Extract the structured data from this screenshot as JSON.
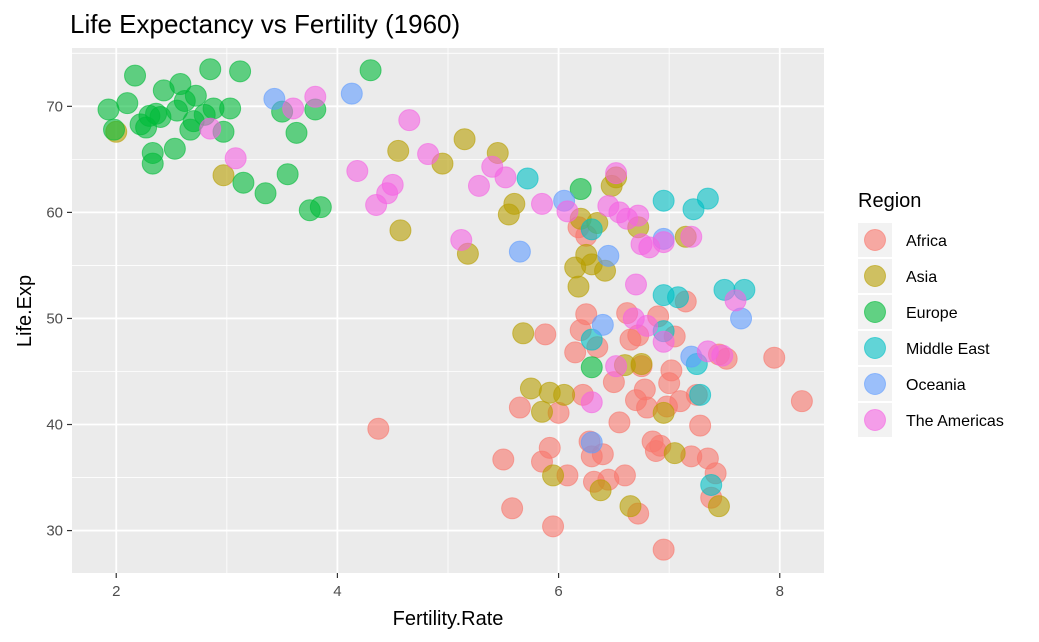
{
  "chart_data": {
    "type": "scatter",
    "title": "Life Expectancy vs Fertility (1960)",
    "xlabel": "Fertility.Rate",
    "ylabel": "Life.Exp",
    "xlim": [
      1.6,
      8.4
    ],
    "ylim": [
      26,
      75.5
    ],
    "x_ticks": [
      2,
      4,
      6,
      8
    ],
    "y_ticks": [
      30,
      40,
      50,
      60,
      70
    ],
    "grid": true,
    "legend": {
      "title": "Region",
      "placement": "right"
    },
    "series": [
      {
        "name": "Africa",
        "color": "#F8766D",
        "points": [
          [
            4.37,
            39.6
          ],
          [
            5.5,
            36.7
          ],
          [
            5.58,
            32.1
          ],
          [
            5.65,
            41.6
          ],
          [
            5.85,
            36.5
          ],
          [
            5.88,
            48.5
          ],
          [
            5.92,
            37.8
          ],
          [
            5.95,
            30.4
          ],
          [
            6.0,
            41.1
          ],
          [
            6.08,
            35.2
          ],
          [
            6.15,
            46.8
          ],
          [
            6.18,
            58.6
          ],
          [
            6.2,
            48.9
          ],
          [
            6.22,
            42.8
          ],
          [
            6.25,
            50.4
          ],
          [
            6.28,
            38.4
          ],
          [
            6.3,
            37.0
          ],
          [
            6.32,
            34.6
          ],
          [
            6.35,
            47.3
          ],
          [
            6.4,
            37.2
          ],
          [
            6.45,
            34.8
          ],
          [
            6.5,
            44.0
          ],
          [
            6.55,
            40.2
          ],
          [
            6.6,
            35.2
          ],
          [
            6.62,
            50.5
          ],
          [
            6.65,
            48.0
          ],
          [
            6.7,
            42.3
          ],
          [
            6.72,
            31.6
          ],
          [
            6.75,
            45.5
          ],
          [
            6.78,
            43.3
          ],
          [
            6.8,
            41.6
          ],
          [
            6.85,
            38.4
          ],
          [
            6.88,
            37.5
          ],
          [
            6.9,
            50.2
          ],
          [
            6.92,
            38.0
          ],
          [
            6.95,
            28.2
          ],
          [
            6.98,
            41.7
          ],
          [
            7.0,
            43.9
          ],
          [
            7.02,
            45.1
          ],
          [
            7.05,
            48.3
          ],
          [
            7.1,
            42.2
          ],
          [
            7.15,
            51.6
          ],
          [
            7.2,
            37.0
          ],
          [
            7.25,
            42.8
          ],
          [
            7.28,
            39.9
          ],
          [
            7.35,
            36.8
          ],
          [
            7.38,
            33.1
          ],
          [
            7.42,
            35.4
          ],
          [
            7.45,
            46.6
          ],
          [
            7.52,
            46.2
          ],
          [
            7.95,
            46.3
          ],
          [
            8.2,
            42.2
          ],
          [
            6.25,
            57.8
          ],
          [
            6.72,
            48.4
          ]
        ]
      },
      {
        "name": "Asia",
        "color": "#B79F00",
        "points": [
          [
            2.0,
            67.6
          ],
          [
            2.97,
            63.5
          ],
          [
            4.55,
            65.8
          ],
          [
            4.57,
            58.3
          ],
          [
            4.95,
            64.6
          ],
          [
            5.15,
            66.9
          ],
          [
            5.18,
            56.1
          ],
          [
            5.45,
            65.6
          ],
          [
            5.55,
            59.8
          ],
          [
            5.6,
            60.8
          ],
          [
            5.68,
            48.6
          ],
          [
            5.75,
            43.4
          ],
          [
            5.85,
            41.2
          ],
          [
            5.92,
            43.0
          ],
          [
            5.95,
            35.2
          ],
          [
            6.05,
            42.8
          ],
          [
            6.15,
            54.8
          ],
          [
            6.18,
            53.0
          ],
          [
            6.2,
            59.4
          ],
          [
            6.25,
            56.0
          ],
          [
            6.3,
            55.1
          ],
          [
            6.35,
            59.0
          ],
          [
            6.38,
            33.8
          ],
          [
            6.42,
            54.5
          ],
          [
            6.48,
            62.5
          ],
          [
            6.52,
            63.3
          ],
          [
            6.6,
            45.6
          ],
          [
            6.65,
            32.3
          ],
          [
            6.72,
            58.6
          ],
          [
            6.75,
            45.7
          ],
          [
            6.95,
            41.1
          ],
          [
            7.05,
            37.3
          ],
          [
            7.15,
            57.7
          ],
          [
            7.45,
            32.3
          ]
        ]
      },
      {
        "name": "Europe",
        "color": "#00BA38",
        "points": [
          [
            1.93,
            69.7
          ],
          [
            1.98,
            67.8
          ],
          [
            2.1,
            70.3
          ],
          [
            2.17,
            72.9
          ],
          [
            2.22,
            68.3
          ],
          [
            2.27,
            68.0
          ],
          [
            2.3,
            69.1
          ],
          [
            2.33,
            65.6
          ],
          [
            2.33,
            64.6
          ],
          [
            2.36,
            69.3
          ],
          [
            2.4,
            69.0
          ],
          [
            2.43,
            71.5
          ],
          [
            2.53,
            66.0
          ],
          [
            2.55,
            69.6
          ],
          [
            2.58,
            72.1
          ],
          [
            2.62,
            70.5
          ],
          [
            2.67,
            67.8
          ],
          [
            2.7,
            68.6
          ],
          [
            2.72,
            71.0
          ],
          [
            2.8,
            69.2
          ],
          [
            2.85,
            73.5
          ],
          [
            2.88,
            69.8
          ],
          [
            2.97,
            67.6
          ],
          [
            3.03,
            69.8
          ],
          [
            3.12,
            73.3
          ],
          [
            3.15,
            62.8
          ],
          [
            3.35,
            61.8
          ],
          [
            3.5,
            69.5
          ],
          [
            3.55,
            63.6
          ],
          [
            3.63,
            67.5
          ],
          [
            3.75,
            60.2
          ],
          [
            3.8,
            69.7
          ],
          [
            3.85,
            60.5
          ],
          [
            4.3,
            73.4
          ],
          [
            6.2,
            62.2
          ],
          [
            6.3,
            45.4
          ]
        ]
      },
      {
        "name": "Middle East",
        "color": "#00BFC4",
        "points": [
          [
            5.72,
            63.2
          ],
          [
            6.3,
            48.0
          ],
          [
            6.95,
            61.1
          ],
          [
            6.95,
            52.2
          ],
          [
            7.08,
            52.0
          ],
          [
            7.22,
            60.3
          ],
          [
            7.25,
            45.7
          ],
          [
            7.28,
            42.8
          ],
          [
            7.35,
            61.3
          ],
          [
            7.38,
            34.3
          ],
          [
            7.5,
            52.7
          ],
          [
            7.68,
            52.7
          ],
          [
            6.95,
            48.8
          ],
          [
            6.3,
            58.4
          ]
        ]
      },
      {
        "name": "Oceania",
        "color": "#619CFF",
        "points": [
          [
            3.43,
            70.7
          ],
          [
            4.13,
            71.2
          ],
          [
            5.65,
            56.3
          ],
          [
            6.05,
            61.1
          ],
          [
            6.3,
            38.3
          ],
          [
            6.4,
            49.4
          ],
          [
            6.45,
            55.9
          ],
          [
            6.95,
            57.5
          ],
          [
            7.2,
            46.4
          ],
          [
            7.65,
            50.0
          ]
        ]
      },
      {
        "name": "The Americas",
        "color": "#F564E3",
        "points": [
          [
            2.85,
            67.9
          ],
          [
            3.08,
            65.1
          ],
          [
            3.6,
            69.8
          ],
          [
            3.8,
            70.9
          ],
          [
            4.18,
            63.9
          ],
          [
            4.35,
            60.7
          ],
          [
            4.45,
            61.8
          ],
          [
            4.5,
            62.6
          ],
          [
            4.65,
            68.7
          ],
          [
            4.82,
            65.5
          ],
          [
            5.12,
            57.4
          ],
          [
            5.28,
            62.5
          ],
          [
            5.4,
            64.3
          ],
          [
            5.52,
            63.3
          ],
          [
            5.85,
            60.8
          ],
          [
            6.08,
            60.1
          ],
          [
            6.3,
            42.1
          ],
          [
            6.45,
            60.6
          ],
          [
            6.52,
            63.7
          ],
          [
            6.52,
            45.5
          ],
          [
            6.55,
            60.0
          ],
          [
            6.62,
            59.4
          ],
          [
            6.68,
            50.0
          ],
          [
            6.7,
            53.2
          ],
          [
            6.72,
            59.7
          ],
          [
            6.75,
            57.0
          ],
          [
            6.8,
            49.3
          ],
          [
            6.82,
            56.7
          ],
          [
            6.95,
            47.8
          ],
          [
            6.95,
            57.2
          ],
          [
            7.2,
            57.7
          ],
          [
            7.35,
            46.9
          ],
          [
            7.48,
            46.5
          ],
          [
            7.6,
            51.7
          ]
        ]
      }
    ]
  }
}
